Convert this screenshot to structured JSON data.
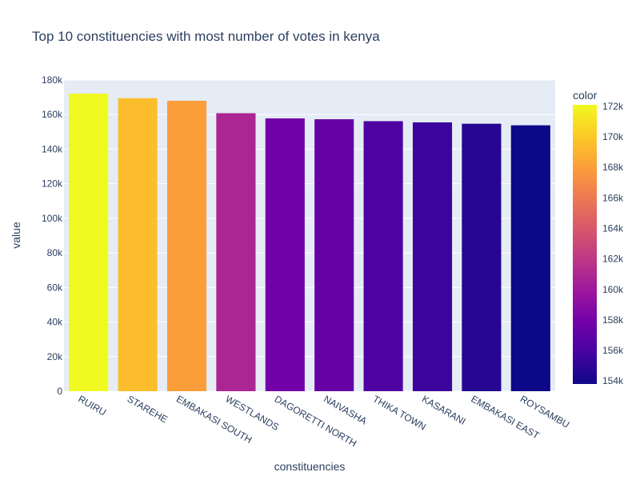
{
  "chart_data": {
    "type": "bar",
    "title": "Top 10 constituencies with most number of votes in kenya",
    "xlabel": "constituencies",
    "ylabel": "value",
    "categories": [
      "RUIRU",
      "STAREHE",
      "EMBAKASI SOUTH",
      "WESTLANDS",
      "DAGORETTI NORTH",
      "NAIVASHA",
      "THIKA TOWN",
      "KASARANI",
      "EMBAKASI EAST",
      "ROYSAMBU"
    ],
    "values": [
      172100,
      169500,
      168000,
      160800,
      157800,
      157300,
      156200,
      155500,
      154700,
      153800
    ],
    "ylim": [
      0,
      180000
    ],
    "y_ticks": [
      0,
      20000,
      40000,
      60000,
      80000,
      100000,
      120000,
      140000,
      160000,
      180000
    ],
    "y_tick_labels": [
      "0",
      "20k",
      "40k",
      "60k",
      "80k",
      "100k",
      "120k",
      "140k",
      "160k",
      "180k"
    ],
    "grid": true,
    "colorbar": {
      "title": "color",
      "range": [
        153800,
        172100
      ],
      "ticks": [
        154000,
        156000,
        158000,
        160000,
        162000,
        164000,
        166000,
        168000,
        170000,
        172000
      ],
      "tick_labels": [
        "154k",
        "156k",
        "158k",
        "160k",
        "162k",
        "164k",
        "166k",
        "168k",
        "170k",
        "172k"
      ],
      "colorscale": [
        "#0d0887",
        "#46039f",
        "#7201a8",
        "#9c179e",
        "#bd3786",
        "#d8576b",
        "#ed7953",
        "#fb9f3a",
        "#fdca26",
        "#f0f921"
      ]
    },
    "plot_background": "#e5ecf6",
    "text_color": "#2a3f5f"
  }
}
